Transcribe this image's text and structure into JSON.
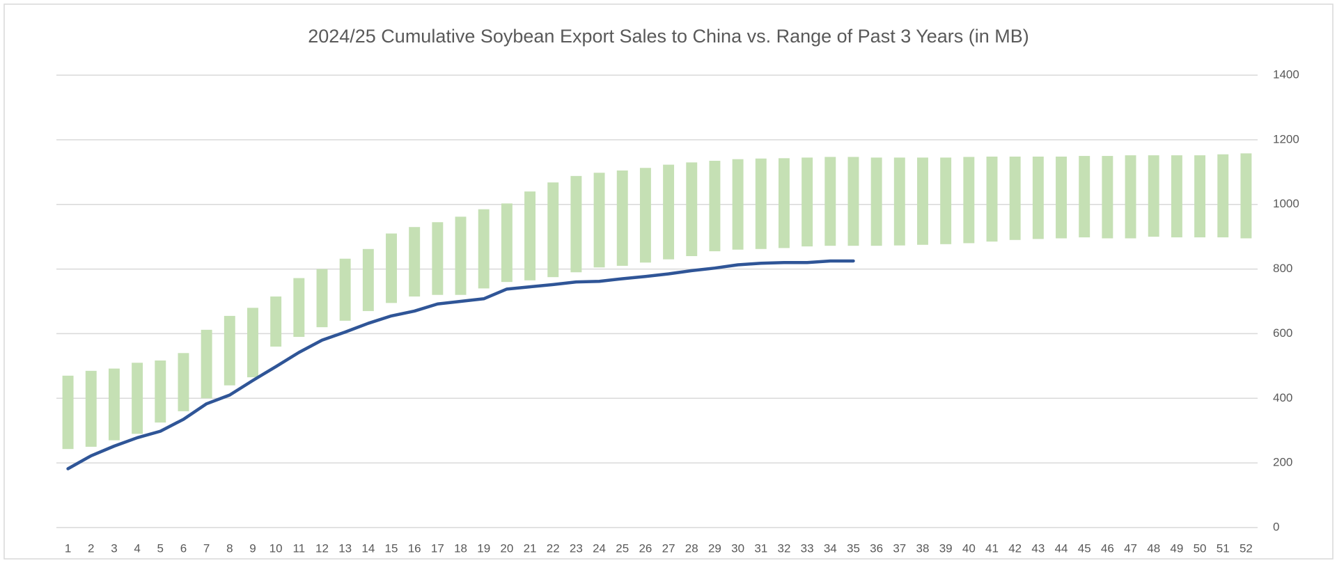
{
  "chart_data": {
    "type": "range-bar-line",
    "title": "2024/25 Cumulative Soybean Export Sales to China vs. Range of Past 3 Years (in MB)",
    "categories": [
      "1",
      "2",
      "3",
      "4",
      "5",
      "6",
      "7",
      "8",
      "9",
      "10",
      "11",
      "12",
      "13",
      "14",
      "15",
      "16",
      "17",
      "18",
      "19",
      "20",
      "21",
      "22",
      "23",
      "24",
      "25",
      "26",
      "27",
      "28",
      "29",
      "30",
      "31",
      "32",
      "33",
      "34",
      "35",
      "36",
      "37",
      "38",
      "39",
      "40",
      "41",
      "42",
      "43",
      "44",
      "45",
      "46",
      "47",
      "48",
      "49",
      "50",
      "51",
      "52"
    ],
    "series": [
      {
        "type": "range",
        "color": "#c5e0b4",
        "low": [
          243,
          250,
          270,
          290,
          325,
          360,
          400,
          440,
          465,
          560,
          590,
          620,
          640,
          670,
          695,
          715,
          720,
          720,
          740,
          760,
          765,
          775,
          790,
          805,
          810,
          820,
          830,
          840,
          855,
          860,
          862,
          865,
          870,
          872,
          872,
          872,
          873,
          875,
          877,
          880,
          885,
          890,
          893,
          895,
          898,
          895,
          895,
          900,
          898,
          898,
          898,
          895
        ],
        "high": [
          470,
          485,
          492,
          510,
          517,
          540,
          612,
          655,
          680,
          715,
          772,
          800,
          832,
          862,
          910,
          930,
          945,
          962,
          985,
          1003,
          1040,
          1068,
          1088,
          1098,
          1105,
          1113,
          1123,
          1130,
          1135,
          1140,
          1142,
          1143,
          1145,
          1147,
          1147,
          1145,
          1145,
          1145,
          1145,
          1147,
          1148,
          1148,
          1148,
          1148,
          1150,
          1150,
          1152,
          1152,
          1152,
          1152,
          1155,
          1158
        ]
      },
      {
        "type": "line",
        "color": "#2f5597",
        "values": [
          182,
          222,
          252,
          278,
          298,
          335,
          383,
          410,
          455,
          498,
          542,
          580,
          605,
          632,
          655,
          670,
          692,
          700,
          708,
          738,
          745,
          752,
          760,
          762,
          770,
          777,
          785,
          795,
          803,
          813,
          818,
          820,
          820,
          825,
          825,
          null,
          null,
          null,
          null,
          null,
          null,
          null,
          null,
          null,
          null,
          null,
          null,
          null,
          null,
          null,
          null,
          null
        ]
      }
    ],
    "ylim": [
      0,
      1400
    ],
    "yticks": [
      0,
      200,
      400,
      600,
      800,
      1000,
      1200,
      1400
    ],
    "grid": true,
    "y_axis_side": "right"
  }
}
